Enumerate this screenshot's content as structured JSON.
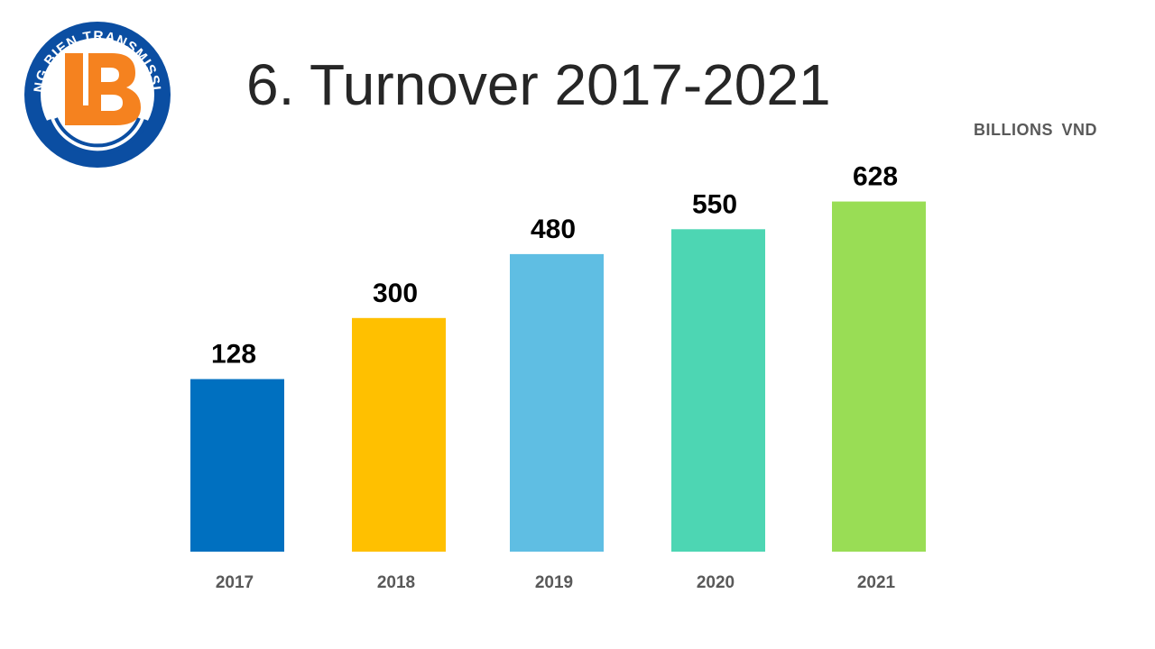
{
  "logo": {
    "text": "LONG BIEN TRANSMISSION",
    "monogram": "LB",
    "ring_color": "#0b4ea2",
    "monogram_color": "#f5821f"
  },
  "title": "6. Turnover 2017-2021",
  "chart_data": {
    "type": "bar",
    "title": "6. Turnover 2017-2021",
    "unit_label": "BILLIONS VND",
    "xlabel": "",
    "ylabel": "BILLIONS VND",
    "categories": [
      "2017",
      "2018",
      "2019",
      "2020",
      "2021"
    ],
    "values": [
      128,
      300,
      480,
      550,
      628
    ],
    "data_labels": [
      "128",
      "300",
      "480",
      "550",
      "628"
    ],
    "colors": [
      "#0070c0",
      "#ffc000",
      "#5fbee3",
      "#4dd6b3",
      "#99dd55"
    ],
    "grid": false,
    "legend": "none"
  }
}
